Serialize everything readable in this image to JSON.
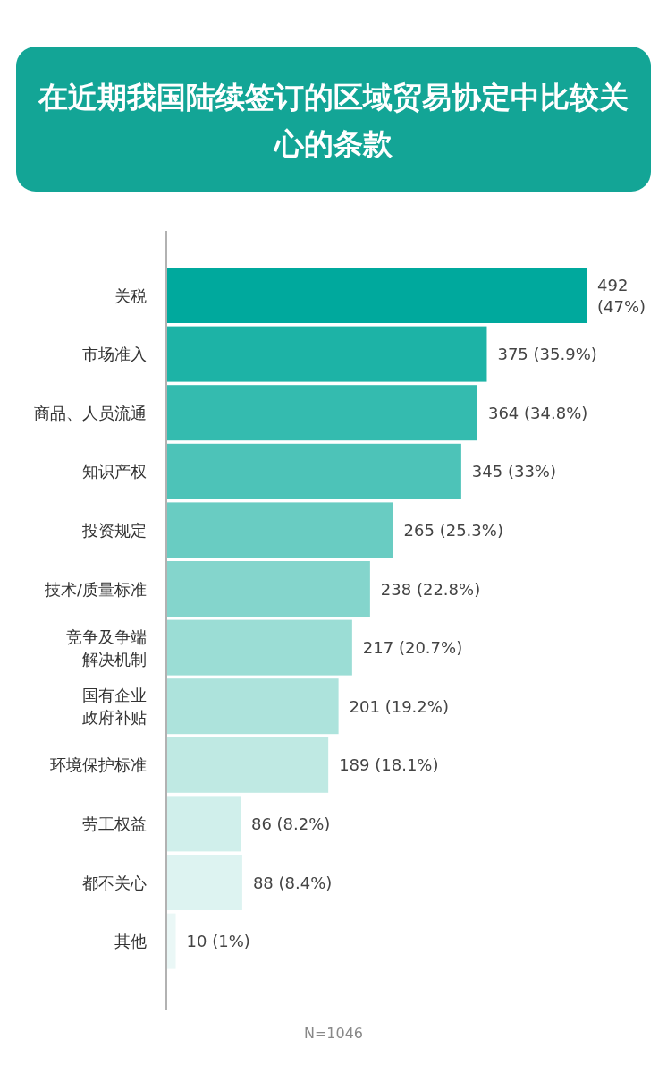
{
  "chart_data": {
    "type": "bar",
    "orientation": "horizontal",
    "title": "在近期我国陆续签订的区域贸易协定中比较关心的条款",
    "categories": [
      "关税",
      "市场准入",
      "商品、人员流通",
      "知识产权",
      "投资规定",
      "技术/质量标准",
      "竞争及争端解决机制",
      "国有企业政府补贴",
      "环境保护标准",
      "劳工权益",
      "都不关心",
      "其他"
    ],
    "values": [
      492,
      375,
      364,
      345,
      265,
      238,
      217,
      201,
      189,
      86,
      88,
      10
    ],
    "value_labels": [
      "492 (47%)",
      "375 (35.9%)",
      "364 (34.8%)",
      "345 (33%)",
      "265 (25.3%)",
      "238 (22.8%)",
      "217 (20.7%)",
      "201 (19.2%)",
      "189 (18.1%)",
      "86 (8.2%)",
      "88 (8.4%)",
      "10 (1%)"
    ],
    "colors": [
      "#00a99d",
      "#1db3a6",
      "#34bbaf",
      "#4dc3b8",
      "#69ccc2",
      "#84d5cc",
      "#9bddd5",
      "#ade3dc",
      "#bfe9e3",
      "#d0efeb",
      "#ddf3f1",
      "#eaf7f6"
    ],
    "annotations": [
      "N=1046"
    ]
  }
}
